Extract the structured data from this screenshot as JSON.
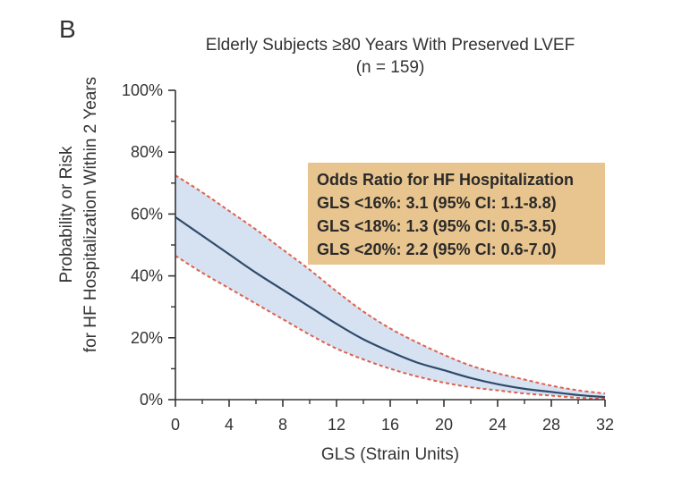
{
  "panel_label": "B",
  "chart_data": {
    "type": "line",
    "title": "Elderly Subjects ≥80 Years With Preserved LVEF",
    "subtitle": "(n = 159)",
    "xlabel": "GLS (Strain Units)",
    "ylabel_line1": "Probability or Risk",
    "ylabel_line2": "for HF Hospitalization Within 2 Years",
    "xlim": [
      0,
      32
    ],
    "ylim": [
      0,
      100
    ],
    "x_ticks": [
      0,
      4,
      8,
      12,
      16,
      20,
      24,
      28,
      32
    ],
    "x_tick_labels": [
      "0",
      "4",
      "8",
      "12",
      "16",
      "20",
      "24",
      "28",
      "32"
    ],
    "y_ticks": [
      0,
      20,
      40,
      60,
      80,
      100
    ],
    "y_tick_labels": [
      "0%",
      "20%",
      "40%",
      "60%",
      "80%",
      "100%"
    ],
    "grid": false,
    "x": [
      0,
      2,
      4,
      6,
      8,
      10,
      12,
      14,
      16,
      18,
      20,
      22,
      24,
      26,
      28,
      30,
      32
    ],
    "series": [
      {
        "role": "estimate",
        "values": [
          59,
          53,
          47,
          41,
          35.5,
          30,
          24.5,
          19.5,
          15.5,
          12,
          9.5,
          7,
          5,
          3.5,
          2.5,
          1.5,
          0.8
        ]
      },
      {
        "role": "upper_ci",
        "values": [
          72.5,
          67,
          61,
          55,
          48.5,
          42,
          35,
          28.5,
          23,
          18.5,
          14.5,
          11,
          8.5,
          6.5,
          4.5,
          3,
          2
        ]
      },
      {
        "role": "lower_ci",
        "values": [
          46.5,
          41,
          36,
          31,
          26,
          21,
          16.5,
          13,
          10,
          7.5,
          5.5,
          4,
          3,
          2,
          1.3,
          0.6,
          0.2
        ]
      }
    ],
    "annotation": {
      "lines": [
        "Odds Ratio for HF Hospitalization",
        "GLS <16%: 3.1 (95% CI: 1.1-8.8)",
        "GLS <18%: 1.3 (95% CI: 0.5-3.5)",
        "GLS <20%: 2.2 (95% CI: 0.6-7.0)"
      ]
    },
    "colors": {
      "estimate_line": "#2f4a6b",
      "ci_line": "#e0604a",
      "ci_fill": "#d6e2f2",
      "annotation_bg": "#e8c48e",
      "axis": "#333333"
    }
  }
}
